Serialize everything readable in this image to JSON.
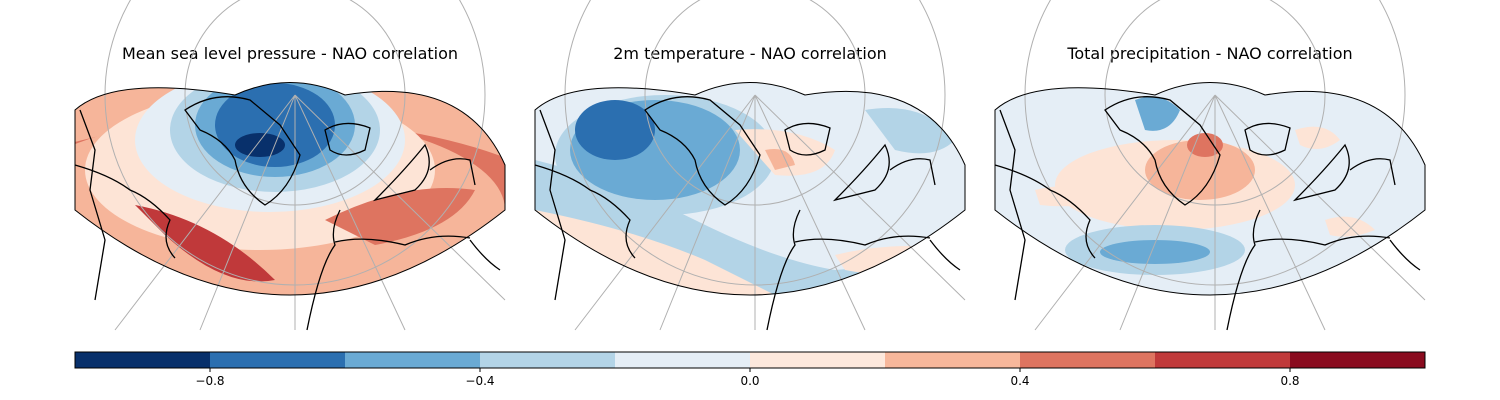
{
  "panels": [
    {
      "title": "Mean sea level pressure - NAO correlation"
    },
    {
      "title": "2m temperature - NAO correlation"
    },
    {
      "title": "Total precipitation - NAO correlation"
    }
  ],
  "colorbar": {
    "palette": [
      "#08306b",
      "#2b6fb0",
      "#6aaad4",
      "#b3d4e7",
      "#e5eef6",
      "#fde8dc",
      "#f7b79b",
      "#de7460",
      "#c0393a",
      "#8a0b1f"
    ],
    "ticks": [
      "−0.8",
      "−0.4",
      "0.0",
      "0.4",
      "0.8"
    ],
    "tick_values": [
      -0.8,
      -0.4,
      0.0,
      0.4,
      0.8
    ],
    "range": [
      -1.0,
      1.0
    ]
  }
}
